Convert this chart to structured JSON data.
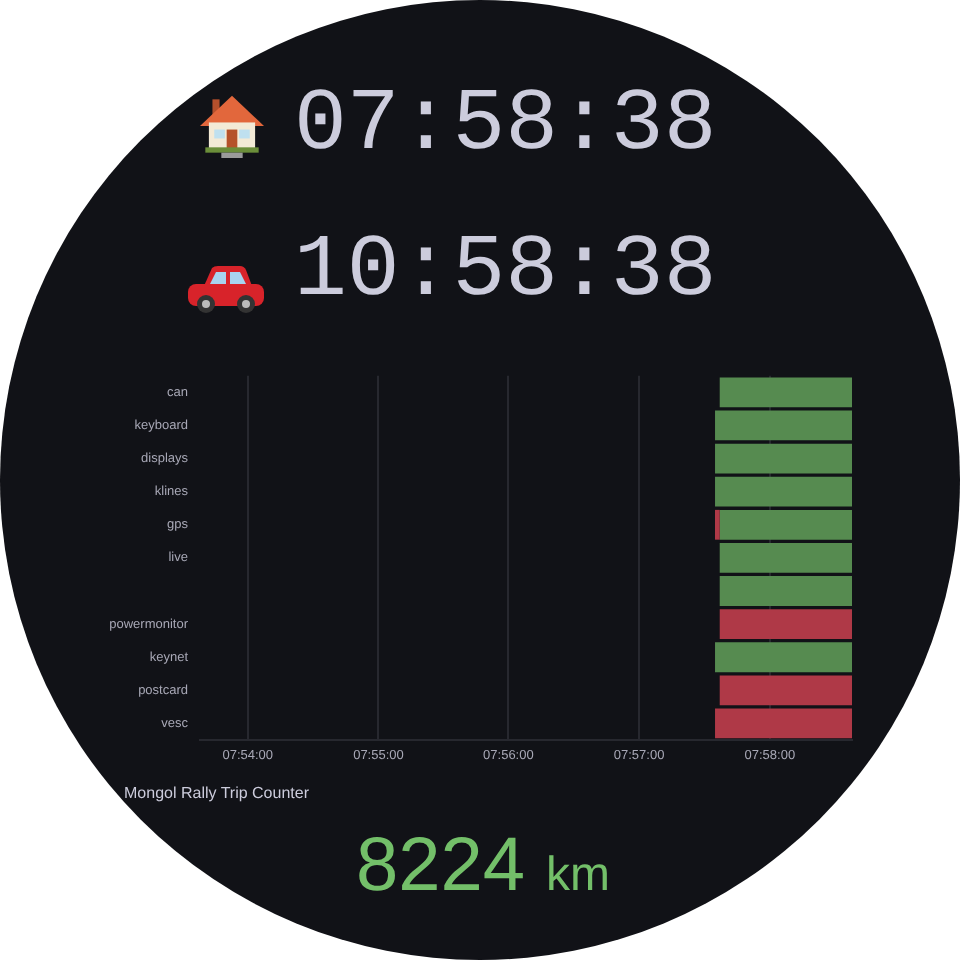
{
  "chart_data": {
    "type": "bar",
    "orientation": "horizontal",
    "categories": [
      "can",
      "keyboard",
      "displays",
      "klines",
      "gps",
      "live",
      null,
      "powermonitor",
      "keynet",
      "postcard",
      "vesc"
    ],
    "series": [
      {
        "base": [
          7.9603,
          7.9597,
          7.9597,
          7.9597,
          7.9597,
          7.9603,
          7.9603,
          7.9603,
          7.9597,
          7.9603,
          7.9597
        ],
        "values": [
          0.0169,
          0.0175,
          0.0175,
          0.0175,
          0.0006,
          0.0169,
          0.0169,
          0.0169,
          0.0175,
          0.0169,
          0.0175
        ],
        "colors": [
          "#568b50",
          "#568b50",
          "#568b50",
          "#568b50",
          "#af3947",
          "#568b50",
          "#568b50",
          "#af3947",
          "#568b50",
          "#af3947",
          "#af3947"
        ]
      },
      {
        "base": [
          null,
          null,
          null,
          null,
          7.9603,
          null,
          null,
          null,
          null,
          null,
          null
        ],
        "values": [
          null,
          null,
          null,
          null,
          0.0169,
          null,
          null,
          null,
          null,
          null,
          null
        ],
        "color": "#568b50"
      }
    ],
    "xlim": [
      7.8939,
      7.9772
    ],
    "xticks": [
      {
        "value": 7.9,
        "label": "07:54:00"
      },
      {
        "value": 7.9167,
        "label": "07:55:00"
      },
      {
        "value": 7.9333,
        "label": "07:56:00"
      },
      {
        "value": 7.95,
        "label": "07:57:00"
      },
      {
        "value": 7.9667,
        "label": "07:58:00"
      }
    ],
    "grid": "x",
    "annotations": [
      "07:58:38",
      "10:58:38",
      "Mongol Rally Trip Counter",
      "8224",
      "km"
    ]
  }
}
